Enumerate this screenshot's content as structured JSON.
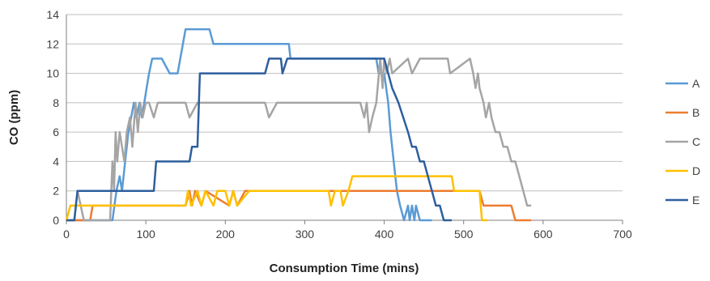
{
  "chart_data": {
    "type": "line",
    "title": "",
    "xlabel": "Consumption Time (mins)",
    "ylabel": "CO (ppm)",
    "xlim": [
      0,
      700
    ],
    "ylim": [
      0,
      14
    ],
    "xticks": [
      0,
      100,
      200,
      300,
      400,
      500,
      600,
      700
    ],
    "yticks": [
      0,
      2,
      4,
      6,
      8,
      10,
      12,
      14
    ],
    "grid": "horizontal",
    "legend": "right",
    "series": [
      {
        "name": "A",
        "color": "#5b9bd5",
        "x": [
          0,
          58,
          63,
          67,
          70,
          74,
          78,
          85,
          88,
          92,
          95,
          98,
          101,
          104,
          108,
          112,
          120,
          130,
          140,
          150,
          180,
          185,
          280,
          282,
          390,
          393,
          400,
          405,
          408,
          412,
          416,
          420,
          425,
          430,
          432,
          435,
          438,
          440,
          445,
          460
        ],
        "y": [
          0,
          0,
          2,
          3,
          2,
          4,
          6,
          8,
          7,
          8,
          7,
          8,
          9,
          10,
          11,
          11,
          11,
          10,
          10,
          13,
          13,
          12,
          12,
          11,
          11,
          10,
          10,
          8,
          6,
          4,
          2,
          1,
          0,
          1,
          0,
          1,
          0,
          1,
          0,
          0
        ]
      },
      {
        "name": "B",
        "color": "#ed7d31",
        "x": [
          0,
          30,
          33,
          150,
          155,
          158,
          162,
          170,
          175,
          205,
          210,
          215,
          225,
          250,
          360,
          520,
          525,
          560,
          565,
          585
        ],
        "y": [
          0,
          0,
          1,
          1,
          2,
          1,
          2,
          1,
          2,
          1,
          2,
          1,
          2,
          2,
          2,
          2,
          1,
          1,
          0,
          0
        ]
      },
      {
        "name": "C",
        "color": "#a5a5a5",
        "x": [
          0,
          10,
          14,
          18,
          22,
          55,
          58,
          60,
          62,
          64,
          67,
          70,
          73,
          76,
          80,
          83,
          87,
          90,
          93,
          96,
          100,
          104,
          110,
          115,
          150,
          155,
          165,
          250,
          255,
          265,
          370,
          375,
          378,
          381,
          385,
          390,
          395,
          398,
          400,
          403,
          407,
          410,
          430,
          435,
          445,
          480,
          483,
          508,
          512,
          515,
          518,
          520,
          525,
          528,
          532,
          535,
          540,
          545,
          550,
          555,
          560,
          565,
          570,
          575,
          580,
          585
        ],
        "y": [
          0,
          0,
          2,
          1,
          0,
          0,
          4,
          2,
          6,
          4,
          6,
          5,
          4,
          6,
          7,
          5,
          8,
          6,
          8,
          7,
          8,
          8,
          7,
          8,
          8,
          7,
          8,
          8,
          7,
          8,
          8,
          7,
          8,
          6,
          7,
          8,
          11,
          9,
          11,
          10,
          11,
          10,
          11,
          10,
          11,
          11,
          10,
          11,
          10,
          9,
          10,
          9,
          8,
          7,
          8,
          7,
          6,
          6,
          5,
          5,
          4,
          4,
          3,
          2,
          1,
          1
        ]
      },
      {
        "name": "D",
        "color": "#ffc000",
        "x": [
          0,
          5,
          10,
          150,
          153,
          157,
          165,
          170,
          175,
          185,
          190,
          200,
          205,
          210,
          215,
          230,
          330,
          333,
          338,
          345,
          348,
          355,
          360,
          485,
          488,
          520,
          523,
          530
        ],
        "y": [
          0,
          1,
          1,
          1,
          2,
          1,
          2,
          1,
          2,
          1,
          2,
          2,
          1,
          2,
          1,
          2,
          2,
          1,
          2,
          2,
          1,
          2,
          3,
          3,
          2,
          2,
          0,
          0
        ]
      },
      {
        "name": "E",
        "color": "#2e5f9e",
        "x": [
          0,
          10,
          14,
          110,
          113,
          155,
          158,
          165,
          168,
          250,
          255,
          270,
          272,
          278,
          400,
          405,
          410,
          418,
          424,
          430,
          435,
          440,
          445,
          450,
          455,
          460,
          465,
          470,
          475,
          480,
          485
        ],
        "y": [
          0,
          0,
          2,
          2,
          4,
          4,
          5,
          5,
          10,
          10,
          11,
          11,
          10,
          11,
          11,
          10,
          9,
          8,
          7,
          6,
          5,
          5,
          4,
          4,
          3,
          2,
          1,
          1,
          0,
          0,
          0
        ]
      }
    ]
  }
}
